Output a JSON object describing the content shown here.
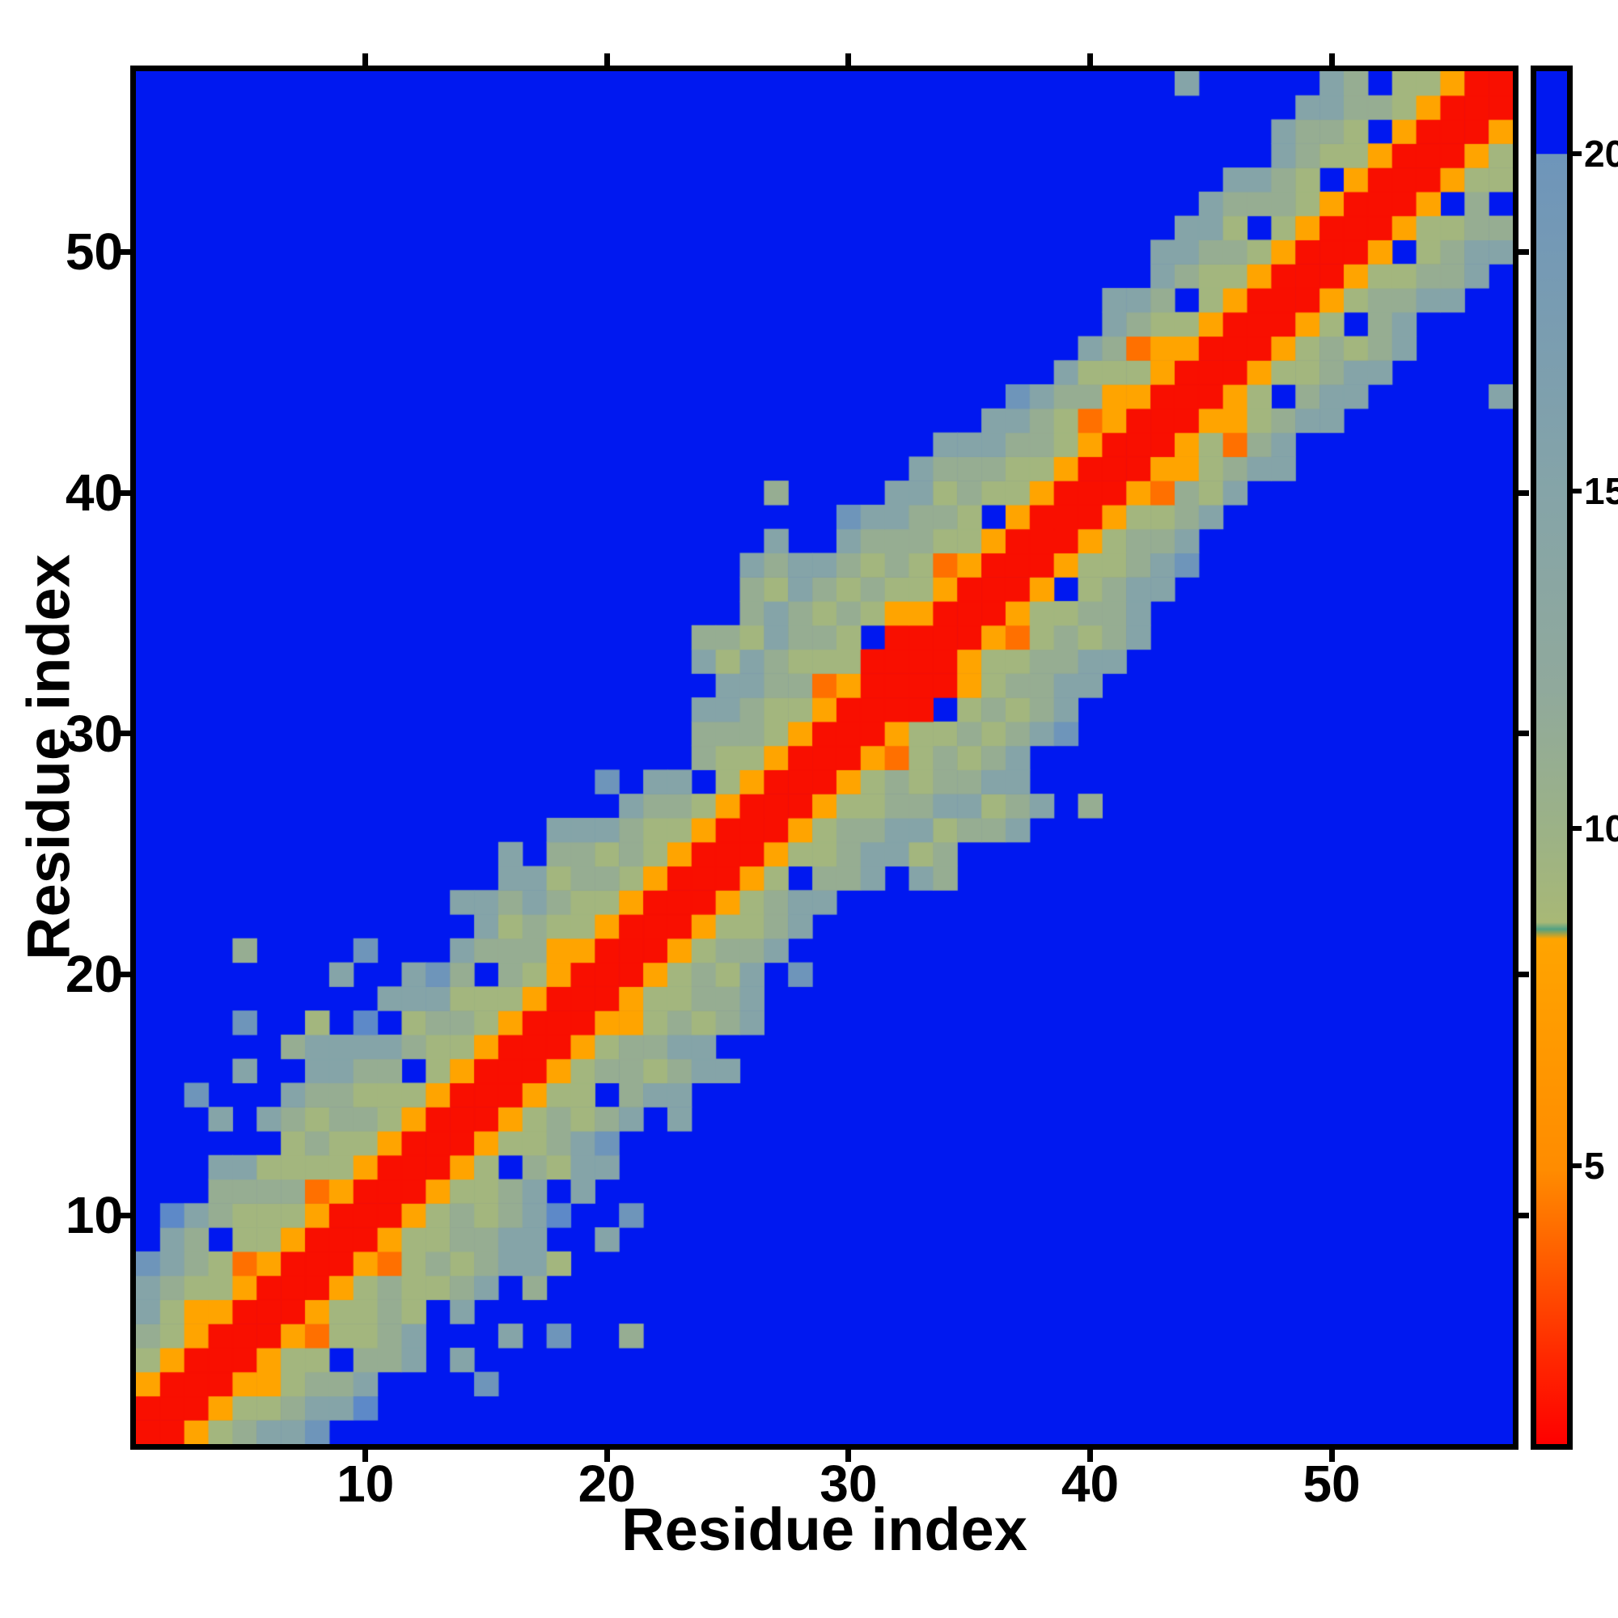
{
  "figure": {
    "background_color": "#ffffff",
    "axis_color": "#000000"
  },
  "chart_data": {
    "type": "heatmap",
    "title": "",
    "xlabel": "Residue index",
    "ylabel": "Residue index",
    "n_residues": 57,
    "axis_range": [
      0.5,
      57.5
    ],
    "x_ticks": [
      10,
      20,
      30,
      40,
      50
    ],
    "y_ticks": [
      10,
      20,
      30,
      40,
      50
    ],
    "grid": false,
    "colorbar": {
      "position": "right",
      "ticks": [
        5,
        10,
        15,
        20
      ],
      "vmin": 0.875,
      "vmax": 21.22,
      "gradient_stops": [
        {
          "frac": 0.0,
          "color": "#0018f0"
        },
        {
          "frac": 0.0601,
          "color": "#0018f0"
        },
        {
          "frac": 0.0605,
          "color": "#6e95ba"
        },
        {
          "frac": 0.306,
          "color": "#85a4a8"
        },
        {
          "frac": 0.45,
          "color": "#90a99c"
        },
        {
          "frac": 0.555,
          "color": "#9cb286"
        },
        {
          "frac": 0.62,
          "color": "#a8b876"
        },
        {
          "frac": 0.625,
          "color": "#52a183"
        },
        {
          "frac": 0.632,
          "color": "#ffa400"
        },
        {
          "frac": 0.8,
          "color": "#ff8c00"
        },
        {
          "frac": 0.87,
          "color": "#ff5a00"
        },
        {
          "frac": 0.94,
          "color": "#ff2600"
        },
        {
          "frac": 1.0,
          "color": "#fe0000"
        }
      ]
    },
    "palette": {
      ".": "#0018f0",
      "b": "#5d89c8",
      "S": "#6e95ba",
      "s": "#85a4a8",
      "h": "#96ad92",
      "g": "#a3b67e",
      "O": "#ffa400",
      "D": "#ff7000",
      "R": "#f90f00"
    },
    "level_values": {
      ".": 21.5,
      "b": 19.5,
      "S": 18.5,
      "s": 15.5,
      "h": 12.5,
      "g": 10.5,
      "O": 6.5,
      "D": 7.5,
      "R": 3.0
    },
    "row_encoding": "lead_blue_count:cells (symbols per palette, '.'=blue >20; rows padded with blue to 57 cols; row 1 = bottom of plot)",
    "matrix_rows_bottom_to_top": [
      "0:RROghssS",
      "0:RRROgghssb",
      "0:ORRROOghhs....S",
      "0:gORRROgg.hhs.s",
      "0:hgORRRODgghs...s.S..h",
      "0:sgOORRROgghg.s",
      "0:shggORRROghgghs.h",
      "0:SshgDORRRODghghssg",
      "1:sh.ggORRROgghhss..s",
      "1:bshgggORRROghghsb..S",
      "3:hhhhDORRROgghs.s",
      "3:ssggggORRROg.hgss",
      "6:ghggORRROgghsS",
      "3:s.shghhgORRROghghs.s",
      "2:S...shhgggORRROgg.hss",
      "4:s..sshh.gORRROghhghss",
      "6:hsssshggORRROghhss",
      "4:S..g.b.ghhgORRROOghghs",
      "10:sssgggORRROgghhs",
      "8:s..sSh.hgORRROghgs.S",
      "4:h....S...shhhOORRROghhs",
      "14:sghggORRROgghs",
      "13:sshshggORRROghss",
      "15:ssghhgORRROg.hhs.sh",
      "15:s.hhghgORRROgghssgh",
      "17:ssshggORRROghhssghhs",
      "20:shhgORRROgghhssghs.h",
      "19:S.ss.gORRROghghhss",
      "23:hggORRRODghghs",
      "23:hhhgORRROgghghsS",
      "23:sshggORRRR.ghghs",
      "24:sshhDORRRROghhss",
      "23:sgshgggRRRROgghhss",
      "23:hhgshhg.RRRRODghghs",
      "25:hshghgOORRROgghhs",
      "25:hgshghggORRRO.ghss",
      "25:shsshghgDORRROgghsS",
      "26:s..shhhggORRROghhs",
      "29:Ssshhg.ORRROgghs",
      "26:h....ssghggORRRODhgs",
      "32:shhhggORRROOghss",
      "33:ssshhgORRROgDhs",
      "35:sshgDORRROOghss",
      "36:SshhOORRROg.hss.....s",
      "38:sgggORRROgghss",
      "39:shDOORRROghghs",
      "40:shggORRROg.hs",
      "40:ssh.gORRROghhss",
      "42:shggORRROgghhs",
      "42:sshhgORRRO.ghss",
      "43:ssg.gORRROgghh",
      "44:shhhgORRRO.h",
      "45:sshg.ORRROgg",
      "47:shggORRROg",
      "47:shhg.ORRRO",
      "48:sshhgORRR",
      "43:s.....sh.ggORR"
    ]
  }
}
